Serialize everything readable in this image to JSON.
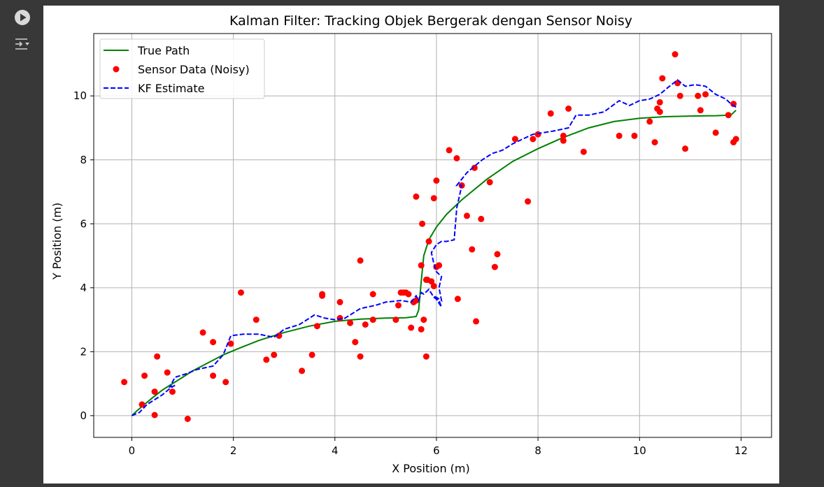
{
  "toolbar": {
    "run_icon": "play-circle-icon",
    "output_icon": "output-toggle-icon"
  },
  "chart_data": {
    "type": "line",
    "title": "Kalman Filter: Tracking Objek Bergerak dengan Sensor Noisy",
    "xlabel": "X Position (m)",
    "ylabel": "Y Position (m)",
    "xlim": [
      -0.75,
      12.6
    ],
    "ylim": [
      -0.68,
      11.95
    ],
    "xticks": [
      0,
      2,
      4,
      6,
      8,
      10,
      12
    ],
    "yticks": [
      0,
      2,
      4,
      6,
      8,
      10
    ],
    "grid": true,
    "legend_position": "top-left",
    "series": [
      {
        "name": "True Path",
        "kind": "line",
        "color": "#008000",
        "dash": "solid",
        "x": [
          0,
          0.1,
          0.25,
          0.4,
          0.6,
          0.8,
          1.0,
          1.2,
          1.5,
          1.8,
          2.1,
          2.5,
          3.0,
          3.5,
          4.0,
          4.5,
          5.0,
          5.4,
          5.6,
          5.65,
          5.7,
          5.75,
          5.85,
          6.0,
          6.2,
          6.5,
          7.0,
          7.5,
          8.0,
          8.5,
          9.0,
          9.5,
          10.0,
          10.5,
          11.0,
          11.5,
          11.8,
          11.9
        ],
        "y": [
          0,
          0.15,
          0.35,
          0.55,
          0.8,
          1.0,
          1.2,
          1.4,
          1.65,
          1.9,
          2.1,
          2.35,
          2.6,
          2.8,
          2.95,
          3.02,
          3.05,
          3.06,
          3.1,
          3.3,
          4.2,
          5.0,
          5.5,
          5.9,
          6.3,
          6.75,
          7.4,
          7.95,
          8.35,
          8.7,
          9.0,
          9.2,
          9.3,
          9.35,
          9.37,
          9.38,
          9.4,
          9.55
        ]
      },
      {
        "name": "Sensor Data (Noisy)",
        "kind": "scatter",
        "color": "#ff0000",
        "x": [
          -0.15,
          0.2,
          0.25,
          0.45,
          0.45,
          0.5,
          0.7,
          0.8,
          1.1,
          1.4,
          1.6,
          1.6,
          1.85,
          1.95,
          2.15,
          2.45,
          2.65,
          2.8,
          2.9,
          3.35,
          3.55,
          3.65,
          3.75,
          3.75,
          4.1,
          4.1,
          4.3,
          4.4,
          4.5,
          4.5,
          4.6,
          4.75,
          4.75,
          5.2,
          5.25,
          5.3,
          5.35,
          5.4,
          5.45,
          5.5,
          5.55,
          5.6,
          5.6,
          5.7,
          5.7,
          5.72,
          5.75,
          5.8,
          5.8,
          5.82,
          5.85,
          5.9,
          5.95,
          5.95,
          6.0,
          6.0,
          6.05,
          6.25,
          6.4,
          6.42,
          6.5,
          6.6,
          6.7,
          6.75,
          6.78,
          6.88,
          7.05,
          7.15,
          7.2,
          7.55,
          7.8,
          7.9,
          8.0,
          8.25,
          8.5,
          8.5,
          8.6,
          8.9,
          9.6,
          9.9,
          10.2,
          10.3,
          10.35,
          10.4,
          10.4,
          10.45,
          10.7,
          10.75,
          10.8,
          10.9,
          11.15,
          11.2,
          11.3,
          11.5,
          11.75,
          11.85,
          11.85,
          11.9
        ],
        "y": [
          1.05,
          0.35,
          1.25,
          0.75,
          0.02,
          1.85,
          1.35,
          0.75,
          -0.1,
          2.6,
          2.3,
          1.25,
          1.05,
          2.25,
          3.85,
          3.0,
          1.75,
          1.9,
          2.5,
          1.4,
          1.9,
          2.8,
          3.8,
          3.75,
          3.05,
          3.55,
          2.9,
          2.3,
          4.85,
          1.85,
          2.85,
          3.8,
          3.0,
          3.0,
          3.45,
          3.85,
          3.85,
          3.85,
          3.8,
          2.75,
          3.55,
          6.85,
          3.6,
          4.7,
          2.7,
          6.0,
          3.0,
          1.85,
          4.25,
          4.25,
          5.45,
          4.2,
          4.05,
          6.8,
          4.65,
          7.35,
          4.7,
          8.3,
          8.05,
          3.65,
          7.2,
          6.25,
          5.2,
          7.75,
          2.95,
          6.15,
          7.3,
          4.65,
          5.05,
          8.65,
          6.7,
          8.65,
          8.8,
          9.45,
          8.75,
          8.6,
          9.6,
          8.25,
          8.75,
          8.75,
          9.2,
          8.55,
          9.6,
          9.5,
          9.8,
          10.55,
          11.3,
          10.4,
          10.0,
          8.35,
          10.0,
          9.55,
          10.05,
          8.85,
          9.4,
          8.55,
          9.75,
          8.65
        ]
      },
      {
        "name": "KF Estimate",
        "kind": "line",
        "color": "#0000ff",
        "dash": "dashed",
        "x": [
          0,
          0.15,
          0.3,
          0.45,
          0.6,
          0.75,
          0.85,
          0.75,
          0.85,
          1.05,
          1.3,
          1.6,
          1.8,
          1.95,
          2.2,
          2.5,
          2.8,
          3.0,
          3.3,
          3.6,
          3.8,
          4.0,
          4.2,
          4.5,
          4.8,
          5.0,
          5.3,
          5.5,
          5.6,
          5.65,
          5.7,
          5.75,
          5.85,
          5.95,
          6.05,
          6.1,
          5.95,
          6.1,
          6.05,
          6.1,
          6.0,
          5.95,
          5.9,
          6.0,
          6.1,
          6.2,
          6.35,
          6.4,
          6.5,
          6.4,
          6.45,
          6.6,
          6.75,
          6.9,
          7.1,
          7.3,
          7.5,
          7.7,
          7.9,
          8.1,
          8.3,
          8.6,
          8.75,
          9.0,
          9.3,
          9.6,
          9.8,
          10.0,
          10.2,
          10.4,
          10.55,
          10.75,
          10.9,
          11.1,
          11.3,
          11.5,
          11.7,
          11.8,
          11.9
        ],
        "y": [
          0,
          0.1,
          0.35,
          0.5,
          0.65,
          0.85,
          0.95,
          0.9,
          1.2,
          1.3,
          1.45,
          1.55,
          1.9,
          2.5,
          2.55,
          2.55,
          2.45,
          2.7,
          2.85,
          3.15,
          3.05,
          3.0,
          3.05,
          3.35,
          3.45,
          3.55,
          3.6,
          3.55,
          3.75,
          3.6,
          3.85,
          3.8,
          3.95,
          3.7,
          3.6,
          3.4,
          3.75,
          3.6,
          4.0,
          4.35,
          4.5,
          4.75,
          5.1,
          5.35,
          5.45,
          5.45,
          5.5,
          6.5,
          7.2,
          7.2,
          7.3,
          7.6,
          7.8,
          8.0,
          8.2,
          8.3,
          8.5,
          8.65,
          8.8,
          8.85,
          8.9,
          9.0,
          9.4,
          9.4,
          9.5,
          9.85,
          9.7,
          9.85,
          9.9,
          10.05,
          10.25,
          10.5,
          10.3,
          10.35,
          10.3,
          10.05,
          9.9,
          9.75,
          9.65
        ]
      }
    ]
  }
}
